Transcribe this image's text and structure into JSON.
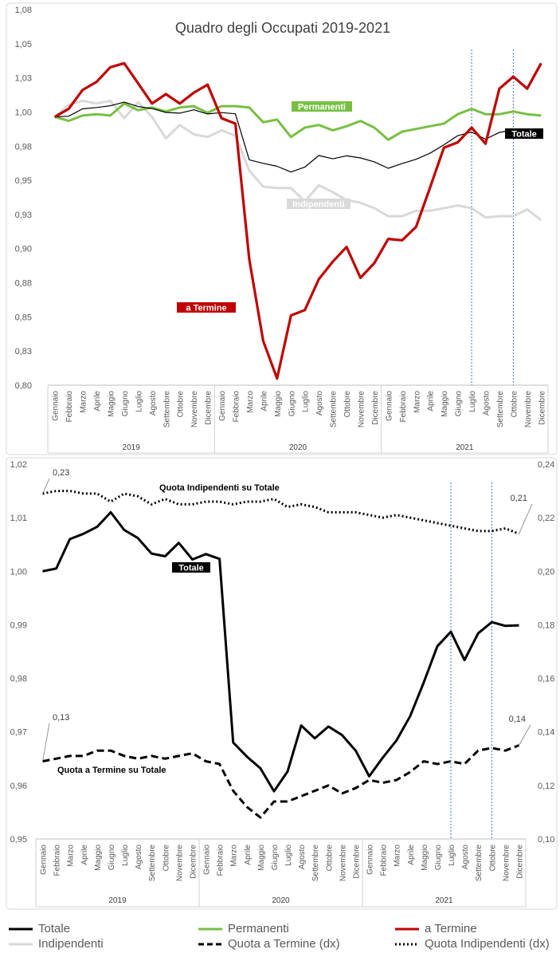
{
  "chart_data": [
    {
      "type": "line",
      "title": "Quadro degli Occupati  2019-2021",
      "categories": [
        "Gennaio",
        "Febbraio",
        "Marzo",
        "Aprile",
        "Maggio",
        "Giugno",
        "Luglio",
        "Agosto",
        "Settembre",
        "Ottobre",
        "Novembre",
        "Dicembre",
        "Gennaio",
        "Febbraio",
        "Marzo",
        "Aprile",
        "Maggio",
        "Giugno",
        "Luglio",
        "Agosto",
        "Settembre",
        "Ottobre",
        "Novembre",
        "Dicembre",
        "Gennaio",
        "Febbraio",
        "Marzo",
        "Aprile",
        "Maggio",
        "Giugno",
        "Luglio",
        "Agosto",
        "Settembre",
        "Ottobre",
        "Novembre",
        "Dicembre"
      ],
      "years": [
        "2019",
        "2020",
        "2021"
      ],
      "ylim": [
        0.8,
        1.08
      ],
      "yticks": [
        "1,08",
        "1,05",
        "1,03",
        "1,00",
        "0,98",
        "0,95",
        "0,93",
        "0,90",
        "0,88",
        "0,85",
        "0,83",
        "0,80"
      ],
      "reference_lines_at": [
        "Luglio 2021",
        "Ottobre 2021"
      ],
      "grid": false,
      "series": [
        {
          "name": "Permanenti",
          "color": "#77c043",
          "values": [
            1.0,
            0.997,
            1.001,
            1.002,
            1.001,
            1.01,
            1.005,
            1.007,
            1.004,
            1.007,
            1.008,
            1.003,
            1.008,
            1.008,
            1.007,
            0.996,
            0.998,
            0.985,
            0.992,
            0.994,
            0.99,
            0.993,
            0.997,
            0.992,
            0.983,
            0.989,
            0.991,
            0.993,
            0.995,
            1.002,
            1.006,
            1.002,
            1.002,
            1.004,
            1.002,
            1.001
          ]
        },
        {
          "name": "a Termine",
          "color": "#c00000",
          "values": [
            1.0,
            1.006,
            1.02,
            1.026,
            1.037,
            1.04,
            1.025,
            1.01,
            1.017,
            1.01,
            1.018,
            1.024,
            0.999,
            0.995,
            0.894,
            0.833,
            0.805,
            0.852,
            0.856,
            0.879,
            0.892,
            0.903,
            0.88,
            0.891,
            0.909,
            0.908,
            0.918,
            0.947,
            0.977,
            0.981,
            0.992,
            0.98,
            1.021,
            1.03,
            1.021,
            1.04
          ]
        },
        {
          "name": "Indipendenti",
          "color": "#d9d9d9",
          "values": [
            1.0,
            1.009,
            1.012,
            1.01,
            1.012,
            0.999,
            1.011,
            1.0,
            0.984,
            0.994,
            0.987,
            0.985,
            0.99,
            0.986,
            0.96,
            0.948,
            0.947,
            0.947,
            0.937,
            0.949,
            0.944,
            0.938,
            0.936,
            0.932,
            0.926,
            0.926,
            0.93,
            0.93,
            0.932,
            0.934,
            0.932,
            0.925,
            0.926,
            0.926,
            0.931,
            0.923
          ]
        },
        {
          "name": "Totale",
          "color": "#000000",
          "values": [
            1.0,
            1.0005,
            1.006,
            1.007,
            1.0083,
            1.011,
            1.0077,
            1.0062,
            1.0033,
            1.0028,
            1.0053,
            1.0022,
            1.0032,
            1.0023,
            0.968,
            0.9654,
            0.9632,
            0.9589,
            0.9626,
            0.9712,
            0.9688,
            0.971,
            0.9694,
            0.9665,
            0.9617,
            0.9652,
            0.9684,
            0.9729,
            0.9792,
            0.986,
            0.9887,
            0.9834,
            0.9884,
            0.9905,
            0.9898,
            0.9899
          ]
        }
      ],
      "labels": {
        "permanenti": "Permanenti",
        "termine": "a Termine",
        "indipendenti": "Indipendenti",
        "totale": "Totale"
      }
    },
    {
      "type": "line",
      "categories": [
        "Gennaio",
        "Febbraio",
        "Marzo",
        "Aprile",
        "Maggio",
        "Giugno",
        "Luglio",
        "Agosto",
        "Settembre",
        "Ottobre",
        "Novembre",
        "Dicembre",
        "Gennaio",
        "Febbraio",
        "Marzo",
        "Aprile",
        "Maggio",
        "Giugno",
        "Luglio",
        "Agosto",
        "Settembre",
        "Ottobre",
        "Novembre",
        "Dicembre",
        "Gennaio",
        "Febbraio",
        "Marzo",
        "Aprile",
        "Maggio",
        "Giugno",
        "Luglio",
        "Agosto",
        "Settembre",
        "Ottobre",
        "Novembre",
        "Dicembre"
      ],
      "years": [
        "2019",
        "2020",
        "2021"
      ],
      "ylim_left": [
        0.95,
        1.02
      ],
      "yticks_left": [
        "1,02",
        "1,01",
        "1,00",
        "0,99",
        "0,98",
        "0,97",
        "0,96",
        "0,95"
      ],
      "ylim_right": [
        0.1,
        0.24
      ],
      "yticks_right": [
        "0,24",
        "0,22",
        "0,20",
        "0,18",
        "0,16",
        "0,14",
        "0,12",
        "0,10"
      ],
      "reference_lines_at": [
        "Luglio 2021",
        "Ottobre 2021"
      ],
      "grid": false,
      "series": [
        {
          "name": "Totale",
          "axis": "left",
          "style": "solid",
          "color": "#000000",
          "values": [
            1.0,
            1.0005,
            1.006,
            1.007,
            1.0083,
            1.011,
            1.0077,
            1.0062,
            1.0033,
            1.0028,
            1.0053,
            1.0022,
            1.0032,
            1.0023,
            0.968,
            0.9654,
            0.9632,
            0.9589,
            0.9626,
            0.9712,
            0.9688,
            0.971,
            0.9694,
            0.9665,
            0.9617,
            0.9652,
            0.9684,
            0.9729,
            0.9792,
            0.986,
            0.9887,
            0.9834,
            0.9884,
            0.9905,
            0.9898,
            0.9899
          ]
        },
        {
          "name": "Quota a Termine (dx)",
          "axis": "right",
          "style": "dashed",
          "color": "#000000",
          "values": [
            0.129,
            0.13,
            0.131,
            0.131,
            0.133,
            0.133,
            0.131,
            0.13,
            0.131,
            0.13,
            0.131,
            0.132,
            0.129,
            0.128,
            0.118,
            0.112,
            0.108,
            0.114,
            0.114,
            0.116,
            0.118,
            0.12,
            0.117,
            0.119,
            0.122,
            0.121,
            0.122,
            0.125,
            0.129,
            0.128,
            0.129,
            0.128,
            0.133,
            0.134,
            0.133,
            0.135
          ]
        },
        {
          "name": "Quota Indipendenti (dx)",
          "axis": "right",
          "style": "dotted",
          "color": "#000000",
          "values": [
            0.229,
            0.23,
            0.23,
            0.229,
            0.229,
            0.226,
            0.229,
            0.228,
            0.225,
            0.227,
            0.225,
            0.225,
            0.226,
            0.226,
            0.225,
            0.226,
            0.226,
            0.227,
            0.224,
            0.225,
            0.224,
            0.222,
            0.222,
            0.222,
            0.221,
            0.22,
            0.221,
            0.22,
            0.219,
            0.218,
            0.217,
            0.216,
            0.215,
            0.215,
            0.216,
            0.214
          ]
        }
      ],
      "annotations": {
        "indip_start": "0,23",
        "indip_end": "0,21",
        "termine_start": "0,13",
        "termine_end": "0,14"
      },
      "labels": {
        "quota_indipendenti": "Quota Indipendenti su Totale",
        "quota_termine": "Quota a Termine su Totale",
        "totale": "Totale"
      }
    }
  ],
  "legend": {
    "items": [
      {
        "label": "Totale",
        "color": "#000000",
        "style": "solid"
      },
      {
        "label": "Permanenti",
        "color": "#77c043",
        "style": "solid"
      },
      {
        "label": "a Termine",
        "color": "#c00000",
        "style": "solid"
      },
      {
        "label": "Indipendenti",
        "color": "#d9d9d9",
        "style": "solid"
      },
      {
        "label": "Quota a Termine (dx)",
        "color": "#000000",
        "style": "dashed"
      },
      {
        "label": "Quota Indipendenti (dx)",
        "color": "#000000",
        "style": "dotted"
      }
    ]
  }
}
